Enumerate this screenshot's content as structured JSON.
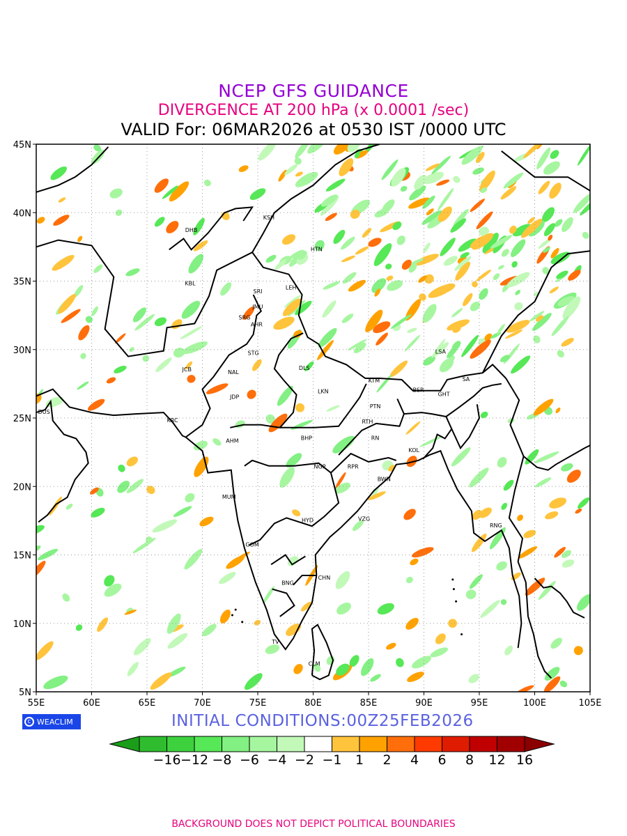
{
  "titles": {
    "line1": "NCEP GFS GUIDANCE",
    "line2": "DIVERGENCE AT 200 hPa (x 0.0001 /sec)",
    "line3": "VALID For: 06MAR2026 at 0530 IST /0000 UTC"
  },
  "axes": {
    "lat_labels": [
      "45N",
      "40N",
      "35N",
      "30N",
      "25N",
      "20N",
      "15N",
      "10N",
      "5N"
    ],
    "lon_labels": [
      "55E",
      "60E",
      "65E",
      "70E",
      "75E",
      "80E",
      "85E",
      "90E",
      "95E",
      "100E",
      "105E"
    ]
  },
  "stations": [
    {
      "code": "KSH",
      "lon": 76.0,
      "lat": 39.5
    },
    {
      "code": "DHB",
      "lon": 69.0,
      "lat": 38.6
    },
    {
      "code": "HTN",
      "lon": 80.3,
      "lat": 37.2
    },
    {
      "code": "KBL",
      "lon": 68.9,
      "lat": 34.7
    },
    {
      "code": "SRI",
      "lon": 75.0,
      "lat": 34.1
    },
    {
      "code": "LEH",
      "lon": 78.0,
      "lat": 34.4
    },
    {
      "code": "JMU",
      "lon": 75.0,
      "lat": 33.0
    },
    {
      "code": "SRG",
      "lon": 73.8,
      "lat": 32.2
    },
    {
      "code": "AHR",
      "lon": 74.9,
      "lat": 31.7
    },
    {
      "code": "LSA",
      "lon": 91.5,
      "lat": 29.7
    },
    {
      "code": "STG",
      "lon": 74.6,
      "lat": 29.6
    },
    {
      "code": "JCB",
      "lon": 68.6,
      "lat": 28.4
    },
    {
      "code": "NAL",
      "lon": 72.8,
      "lat": 28.2
    },
    {
      "code": "DLS",
      "lon": 79.2,
      "lat": 28.5
    },
    {
      "code": "KTM",
      "lon": 85.5,
      "lat": 27.6
    },
    {
      "code": "BSR",
      "lon": 89.5,
      "lat": 26.9
    },
    {
      "code": "SA",
      "lon": 93.8,
      "lat": 27.7
    },
    {
      "code": "GHT",
      "lon": 91.8,
      "lat": 26.6
    },
    {
      "code": "JDP",
      "lon": 72.9,
      "lat": 26.4
    },
    {
      "code": "LKN",
      "lon": 80.9,
      "lat": 26.8
    },
    {
      "code": "PTN",
      "lon": 85.6,
      "lat": 25.7
    },
    {
      "code": "DUS",
      "lon": 55.7,
      "lat": 25.3
    },
    {
      "code": "KRC",
      "lon": 67.3,
      "lat": 24.7
    },
    {
      "code": "RTH",
      "lon": 84.9,
      "lat": 24.6
    },
    {
      "code": "AHM",
      "lon": 72.7,
      "lat": 23.2
    },
    {
      "code": "BHP",
      "lon": 79.4,
      "lat": 23.4
    },
    {
      "code": "RN",
      "lon": 85.6,
      "lat": 23.4
    },
    {
      "code": "KOL",
      "lon": 89.1,
      "lat": 22.5
    },
    {
      "code": "NGP",
      "lon": 80.6,
      "lat": 21.3
    },
    {
      "code": "RPR",
      "lon": 83.6,
      "lat": 21.3
    },
    {
      "code": "BWN",
      "lon": 86.4,
      "lat": 20.4
    },
    {
      "code": "MUM",
      "lon": 72.4,
      "lat": 19.1
    },
    {
      "code": "HYD",
      "lon": 79.5,
      "lat": 17.4
    },
    {
      "code": "VZG",
      "lon": 84.6,
      "lat": 17.5
    },
    {
      "code": "RNG",
      "lon": 96.5,
      "lat": 17.0
    },
    {
      "code": "GOM",
      "lon": 74.5,
      "lat": 15.6
    },
    {
      "code": "CHN",
      "lon": 81.0,
      "lat": 13.2
    },
    {
      "code": "BNG",
      "lon": 77.7,
      "lat": 12.8
    },
    {
      "code": "TV",
      "lon": 76.6,
      "lat": 8.5
    },
    {
      "code": "CLM",
      "lon": 80.1,
      "lat": 6.9
    }
  ],
  "logo": {
    "text": "WEACLIM",
    "icon": "copyright-circle-icon"
  },
  "init_text": "INITIAL  CONDITIONS:00Z25FEB2026",
  "colorbar": {
    "labels": [
      "−16",
      "−12",
      "−8",
      "−6",
      "−4",
      "−2",
      "−1",
      "1",
      "2",
      "4",
      "6",
      "8",
      "12",
      "16"
    ],
    "colors": [
      "#1a9e1a",
      "#2fbd2f",
      "#3ed13e",
      "#56e856",
      "#82f082",
      "#a6f6a0",
      "#c2f9b9",
      "#ffffff",
      "#ffc43c",
      "#ffa200",
      "#ff6e0a",
      "#ff3a00",
      "#e01c00",
      "#c00000",
      "#a00000",
      "#8b0000"
    ]
  },
  "footer": "BACKGROUND DOES NOT DEPICT POLITICAL BOUNDARIES"
}
